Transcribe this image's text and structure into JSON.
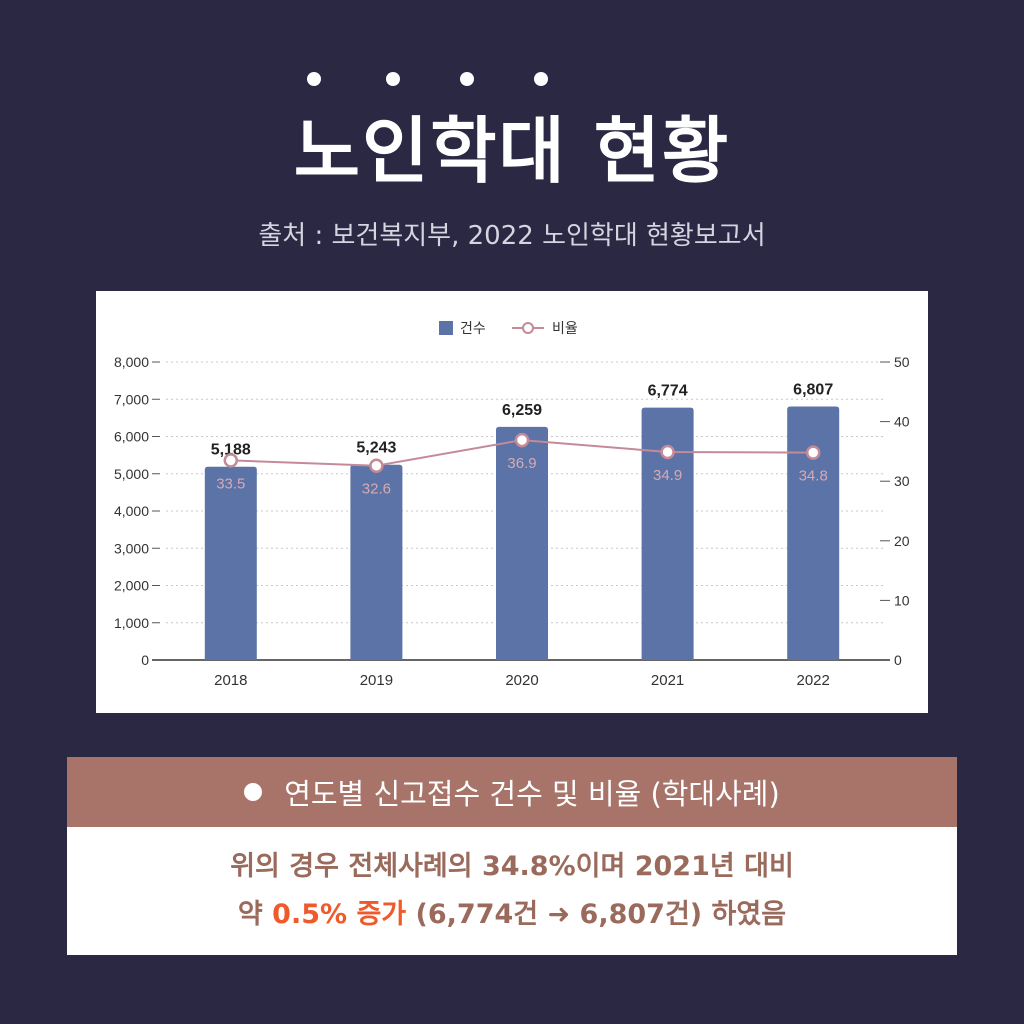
{
  "page": {
    "title": "노인학대 현황",
    "source": "출처 : 보건복지부, 2022 노인학대 현황보고서"
  },
  "chart_data": {
    "type": "bar",
    "categories": [
      "2018",
      "2019",
      "2020",
      "2021",
      "2022"
    ],
    "series": [
      {
        "name": "건수",
        "type": "bar",
        "axis": "left",
        "values": [
          5188,
          5243,
          6259,
          6774,
          6807
        ],
        "labels": [
          "5,188",
          "5,243",
          "6,259",
          "6,774",
          "6,807"
        ]
      },
      {
        "name": "비율",
        "type": "line",
        "axis": "right",
        "values": [
          33.5,
          32.6,
          36.9,
          34.9,
          34.8
        ],
        "labels": [
          "33.5",
          "32.6",
          "36.9",
          "34.9",
          "34.8"
        ]
      }
    ],
    "ylim_left": [
      0,
      8000
    ],
    "ylim_right": [
      0,
      50
    ],
    "left_ticks": [
      "0",
      "1,000",
      "2,000",
      "3,000",
      "4,000",
      "5,000",
      "6,000",
      "7,000",
      "8,000"
    ],
    "right_ticks": [
      "0",
      "10",
      "20",
      "30",
      "40",
      "50"
    ],
    "grid": true,
    "legend_position": "top-center",
    "colors": {
      "bar": "#5b73a6",
      "line": "#c58a98",
      "grid": "#c8c8c8"
    }
  },
  "caption": {
    "text": "연도별 신고접수 건수 및 비율 (학대사례)"
  },
  "description": {
    "line1": "위의 경우 전체사례의 34.8%이며 2021년 대비",
    "line2_prefix": "약 ",
    "line2_highlight": "0.5% 증가",
    "line2_suffix": " (6,774건 ➜ 6,807건) 하였음"
  }
}
